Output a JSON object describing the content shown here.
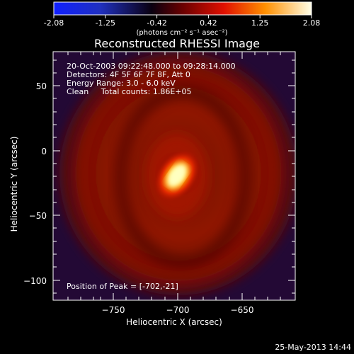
{
  "colorbar": {
    "tick_labels": [
      "-2.08",
      "-1.25",
      "-0.42",
      "0.42",
      "1.25",
      "2.08"
    ],
    "units_label": "(photons cm⁻² s⁻¹ asec⁻²)",
    "colormap": [
      "#0000ff",
      "#000000",
      "#800000",
      "#ff0000",
      "#ffff00",
      "#ffffff"
    ]
  },
  "plot": {
    "title": "Reconstructed RHESSI Image",
    "xlabel": "Heliocentric X (arcsec)",
    "ylabel": "Heliocentric Y (arcsec)",
    "x_ticks": [
      "−750",
      "−700",
      "−650"
    ],
    "y_ticks": [
      "50",
      "0",
      "−50",
      "−100"
    ],
    "info_lines": [
      "20-Oct-2003 09:22:48.000 to 09:28:14.000",
      "Detectors: 4F 5F 6F 7F 8F, Att 0",
      "Energy Range: 3.0 - 6.0 keV",
      "Clean     Total counts: 1.86E+05"
    ],
    "peak_label": "Position of Peak = [-702,-21]"
  },
  "footer": {
    "date": "25-May-2013 14:44"
  }
}
